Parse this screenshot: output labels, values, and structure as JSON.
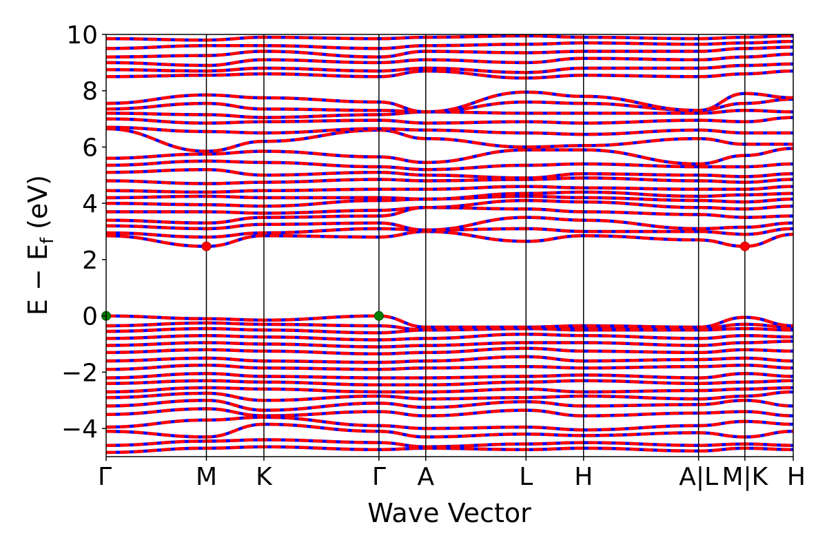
{
  "chart_data": {
    "type": "line",
    "title": "",
    "xlabel": "Wave Vector",
    "ylabel": "E − E",
    "ylabel_subscript": "f",
    "ylabel_unit": " (eV)",
    "ylim": [
      -5,
      10
    ],
    "yticks": [
      {
        "value": 10,
        "label": "10"
      },
      {
        "value": 8,
        "label": "8"
      },
      {
        "value": 6,
        "label": "6"
      },
      {
        "value": 4,
        "label": "4"
      },
      {
        "value": 2,
        "label": "2"
      },
      {
        "value": 0,
        "label": "0"
      },
      {
        "value": -2,
        "label": "−2"
      },
      {
        "value": -4,
        "label": "−4"
      }
    ],
    "xlim": [
      0,
      13.5
    ],
    "kpoints": [
      {
        "value": 0,
        "label": "Γ"
      },
      {
        "value": 1.97,
        "label": "M"
      },
      {
        "value": 3.1,
        "label": "K"
      },
      {
        "value": 5.36,
        "label": "Γ"
      },
      {
        "value": 6.28,
        "label": "A"
      },
      {
        "value": 8.25,
        "label": "L"
      },
      {
        "value": 9.38,
        "label": "H"
      },
      {
        "value": 11.64,
        "label": "A|L"
      },
      {
        "value": 12.55,
        "label": "M|K"
      },
      {
        "value": 13.5,
        "label": "H"
      }
    ],
    "series_colors": {
      "spin_up": "#ff0000",
      "spin_down": "#0000ff"
    },
    "highlight_points": [
      {
        "x": 0,
        "y": 0,
        "color": "#007f00",
        "kind": "vbm"
      },
      {
        "x": 5.36,
        "y": 0,
        "color": "#007f00",
        "kind": "vbm"
      },
      {
        "x": 1.97,
        "y": 2.47,
        "color": "#ff0000",
        "kind": "cbm"
      },
      {
        "x": 12.55,
        "y": 2.47,
        "color": "#ff0000",
        "kind": "cbm"
      }
    ],
    "bands": [
      [
        -4.85,
        -4.7,
        -4.65,
        -4.75,
        -4.7,
        -4.75,
        -4.7,
        -4.8,
        -4.7,
        -4.75
      ],
      [
        -4.6,
        -4.45,
        -4.4,
        -4.5,
        -4.65,
        -4.55,
        -4.5,
        -4.6,
        -4.55,
        -4.6
      ],
      [
        -4.1,
        -4.3,
        -3.85,
        -4.1,
        -4.3,
        -4.2,
        -4.25,
        -4.15,
        -4.3,
        -4.1
      ],
      [
        -3.95,
        -3.7,
        -3.6,
        -3.9,
        -4.0,
        -3.95,
        -4.05,
        -3.9,
        -3.75,
        -3.85
      ],
      [
        -3.5,
        -3.3,
        -3.55,
        -3.4,
        -3.55,
        -3.35,
        -3.55,
        -3.45,
        -3.4,
        -3.55
      ],
      [
        -3.2,
        -3.0,
        -3.35,
        -3.1,
        -3.25,
        -3.05,
        -3.2,
        -3.15,
        -3.0,
        -3.2
      ],
      [
        -2.9,
        -2.75,
        -3.0,
        -2.85,
        -2.95,
        -2.9,
        -2.85,
        -2.95,
        -2.85,
        -2.7
      ],
      [
        -2.7,
        -2.55,
        -2.6,
        -2.7,
        -2.7,
        -2.6,
        -2.7,
        -2.65,
        -2.6,
        -2.55
      ],
      [
        -2.4,
        -2.3,
        -2.35,
        -2.45,
        -2.45,
        -2.35,
        -2.3,
        -2.4,
        -2.35,
        -2.3
      ],
      [
        -2.2,
        -2.05,
        -2.15,
        -2.2,
        -2.2,
        -2.15,
        -2.1,
        -2.2,
        -2.05,
        -2.15
      ],
      [
        -1.9,
        -1.75,
        -1.85,
        -1.9,
        -1.85,
        -1.8,
        -1.85,
        -1.8,
        -1.75,
        -1.85
      ],
      [
        -1.6,
        -1.5,
        -1.6,
        -1.65,
        -1.6,
        -1.45,
        -1.6,
        -1.55,
        -1.5,
        -1.6
      ],
      [
        -1.3,
        -1.2,
        -1.25,
        -1.35,
        -1.3,
        -1.15,
        -1.25,
        -1.3,
        -1.2,
        -1.25
      ],
      [
        -1.05,
        -0.95,
        -1.0,
        -1.1,
        -1.05,
        -0.95,
        -0.95,
        -1.05,
        -0.95,
        -0.9
      ],
      [
        -0.8,
        -0.7,
        -0.75,
        -0.85,
        -0.8,
        -0.65,
        -0.7,
        -0.8,
        -0.7,
        -0.75
      ],
      [
        -0.55,
        -0.45,
        -0.5,
        -0.6,
        -0.5,
        -0.45,
        -0.5,
        -0.5,
        -0.45,
        -0.5
      ],
      [
        -0.35,
        -0.25,
        -0.3,
        -0.35,
        -0.5,
        -0.45,
        -0.4,
        -0.45,
        -0.3,
        -0.4
      ],
      [
        0.0,
        -0.1,
        -0.15,
        0.0,
        -0.4,
        -0.4,
        -0.35,
        -0.4,
        -0.05,
        -0.35
      ],
      [
        2.85,
        2.47,
        2.85,
        2.8,
        3.0,
        2.65,
        2.85,
        2.7,
        2.47,
        2.9
      ],
      [
        2.95,
        2.8,
        2.95,
        3.1,
        3.05,
        3.1,
        3.0,
        3.0,
        2.9,
        3.1
      ],
      [
        3.2,
        3.1,
        3.25,
        3.3,
        3.05,
        3.5,
        3.4,
        3.1,
        3.15,
        3.3
      ],
      [
        3.4,
        3.3,
        3.5,
        3.55,
        3.85,
        3.8,
        3.7,
        3.6,
        3.5,
        3.55
      ],
      [
        3.7,
        3.7,
        3.65,
        3.75,
        3.85,
        4.1,
        4.05,
        3.85,
        3.8,
        3.9
      ],
      [
        4.0,
        3.95,
        3.9,
        4.1,
        4.15,
        4.25,
        4.2,
        4.1,
        4.05,
        4.15
      ],
      [
        4.2,
        4.25,
        4.2,
        4.2,
        4.15,
        4.35,
        4.4,
        4.25,
        4.3,
        4.35
      ],
      [
        4.45,
        4.4,
        4.45,
        4.5,
        4.5,
        4.6,
        4.55,
        4.5,
        4.5,
        4.6
      ],
      [
        4.8,
        4.7,
        4.75,
        4.85,
        4.8,
        4.85,
        4.9,
        4.8,
        4.75,
        4.85
      ],
      [
        5.1,
        5.2,
        5.0,
        5.1,
        5.0,
        4.9,
        5.05,
        5.0,
        4.95,
        5.05
      ],
      [
        5.35,
        5.5,
        5.45,
        5.3,
        5.2,
        5.35,
        5.4,
        5.3,
        5.3,
        5.4
      ],
      [
        5.6,
        5.75,
        5.85,
        5.65,
        5.45,
        5.9,
        5.9,
        5.4,
        5.7,
        5.95
      ],
      [
        6.65,
        5.85,
        6.2,
        6.6,
        6.3,
        6.0,
        6.05,
        6.3,
        6.1,
        6.1
      ],
      [
        6.7,
        6.55,
        6.5,
        6.65,
        6.6,
        6.5,
        6.45,
        6.6,
        6.5,
        6.5
      ],
      [
        7.0,
        6.85,
        6.9,
        6.95,
        6.85,
        6.9,
        6.85,
        6.95,
        6.9,
        7.05
      ],
      [
        7.2,
        7.15,
        7.05,
        7.15,
        7.25,
        7.2,
        7.2,
        7.2,
        7.3,
        7.25
      ],
      [
        7.35,
        7.55,
        7.35,
        7.3,
        7.25,
        7.6,
        7.55,
        7.3,
        7.55,
        7.7
      ],
      [
        7.55,
        7.85,
        7.75,
        7.6,
        7.25,
        7.95,
        7.8,
        7.3,
        7.9,
        7.75
      ],
      [
        8.5,
        8.55,
        8.6,
        8.5,
        8.7,
        8.45,
        8.55,
        8.5,
        8.6,
        8.7
      ],
      [
        8.75,
        8.7,
        8.8,
        8.7,
        8.8,
        8.65,
        8.8,
        8.8,
        8.9,
        8.95
      ],
      [
        9.0,
        8.9,
        9.1,
        9.0,
        9.1,
        9.0,
        9.15,
        9.1,
        9.2,
        9.3
      ],
      [
        9.2,
        9.25,
        9.4,
        9.2,
        9.4,
        9.35,
        9.4,
        9.4,
        9.5,
        9.55
      ],
      [
        9.5,
        9.6,
        9.6,
        9.5,
        9.6,
        9.65,
        9.7,
        9.65,
        9.7,
        9.75
      ],
      [
        9.85,
        9.8,
        9.9,
        9.85,
        9.9,
        9.95,
        9.9,
        9.85,
        9.9,
        9.95
      ]
    ]
  }
}
